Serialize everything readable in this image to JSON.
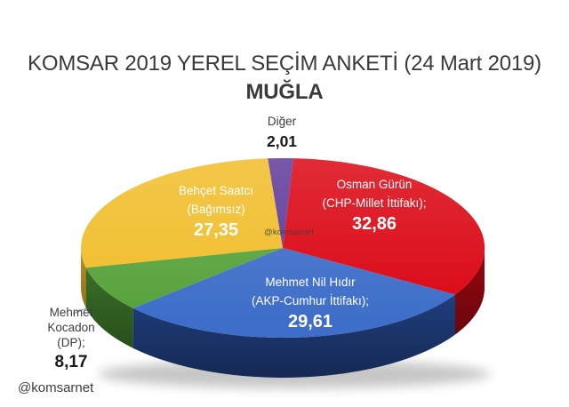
{
  "title": {
    "line1": "KOMSAR 2019 YEREL SEÇİM ANKETİ (24 Mart 2019)",
    "line2": "MUĞLA"
  },
  "watermark": {
    "center": "@komsarnet",
    "bottom": "@komsarnet"
  },
  "chart_data": {
    "type": "pie",
    "style": "3d",
    "start_angle_deg": 3,
    "unit": "percent",
    "legend_position": "none",
    "labels_on_slices": true,
    "series": [
      {
        "label": "Osman Gürün",
        "sublabel": "(CHP-Millet İttifakı);",
        "value": 32.86,
        "value_text": "32,86",
        "color": "#DB0714",
        "side_color": "#8F0810"
      },
      {
        "label": "Mehmet Nil Hıdır",
        "sublabel": "(AKP-Cumhur İttifakı);",
        "value": 29.61,
        "value_text": "29,61",
        "color": "#3E6EC9",
        "side_color": "#24478F"
      },
      {
        "label": "Mehmet Kocadon",
        "sublabel": "(DP);",
        "value": 8.17,
        "value_text": "8,17",
        "color": "#57A23B",
        "side_color": "#3A7228"
      },
      {
        "label": "Behçet Saatcı",
        "sublabel": "(Bağımsız)",
        "value": 27.35,
        "value_text": "27,35",
        "color": "#F1BD2A",
        "side_color": "#B6871E"
      },
      {
        "label": "Diğer",
        "sublabel": "",
        "value": 2.01,
        "value_text": "2,01",
        "color": "#5F3A9A",
        "side_color": "#44296E"
      }
    ]
  }
}
